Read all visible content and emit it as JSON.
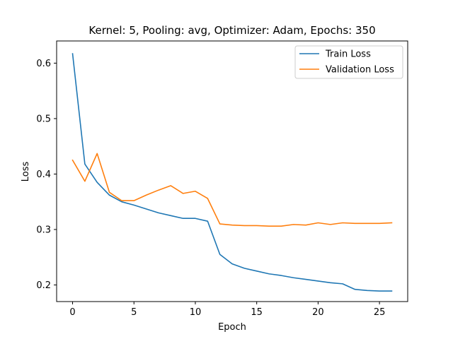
{
  "chart_data": {
    "type": "line",
    "title": "Kernel: 5, Pooling: avg, Optimizer: Adam, Epochs: 350",
    "xlabel": "Epoch",
    "ylabel": "Loss",
    "xlim": [
      -1.3,
      27.3
    ],
    "ylim": [
      0.17,
      0.64
    ],
    "xticks": [
      0,
      5,
      10,
      15,
      20,
      25
    ],
    "yticks": [
      0.2,
      0.3,
      0.4,
      0.5,
      0.6
    ],
    "ytick_labels": [
      "0.2",
      "0.3",
      "0.4",
      "0.5",
      "0.6"
    ],
    "x": [
      0,
      1,
      2,
      3,
      4,
      5,
      6,
      7,
      8,
      9,
      10,
      11,
      12,
      13,
      14,
      15,
      16,
      17,
      18,
      19,
      20,
      21,
      22,
      23,
      24,
      25,
      26
    ],
    "legend_position": "upper-right",
    "grid": false,
    "series": [
      {
        "name": "Train Loss",
        "color": "#1f77b4",
        "values": [
          0.617,
          0.418,
          0.385,
          0.362,
          0.35,
          0.344,
          0.337,
          0.33,
          0.325,
          0.32,
          0.32,
          0.315,
          0.255,
          0.238,
          0.23,
          0.225,
          0.22,
          0.217,
          0.213,
          0.21,
          0.207,
          0.204,
          0.202,
          0.192,
          0.19,
          0.189,
          0.189
        ]
      },
      {
        "name": "Validation Loss",
        "color": "#ff7f0e",
        "values": [
          0.425,
          0.387,
          0.437,
          0.367,
          0.352,
          0.352,
          0.362,
          0.371,
          0.379,
          0.365,
          0.369,
          0.356,
          0.31,
          0.308,
          0.307,
          0.307,
          0.306,
          0.306,
          0.309,
          0.308,
          0.312,
          0.309,
          0.312,
          0.311,
          0.311,
          0.311,
          0.312
        ]
      }
    ]
  }
}
